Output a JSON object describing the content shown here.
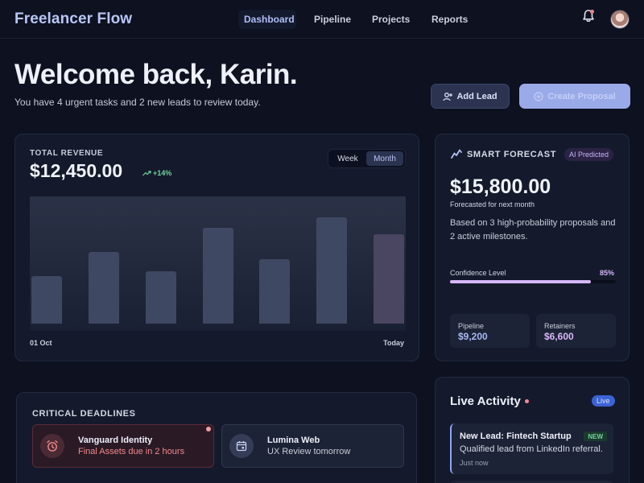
{
  "app": {
    "brand": "Freelancer Flow"
  },
  "nav": {
    "items": [
      {
        "label": "Dashboard",
        "active": true
      },
      {
        "label": "Pipeline"
      },
      {
        "label": "Projects"
      },
      {
        "label": "Reports"
      }
    ],
    "bell_icon": "bell-icon",
    "avatar_icon": "user-avatar"
  },
  "hero": {
    "title": "Welcome back, Karin.",
    "subtitle": "You have 4 urgent tasks and 2 new leads to review today.",
    "add_lead_label": "Add Lead",
    "create_proposal_label": "Create Proposal"
  },
  "revenue": {
    "label": "TOTAL REVENUE",
    "value": "$12,450.00",
    "delta": "+14%",
    "toggle": {
      "week": "Week",
      "month": "Month",
      "selected": "Month"
    },
    "x_start": "01 Oct",
    "x_end": "Today"
  },
  "chart_data": {
    "type": "bar",
    "title": "",
    "xlabel": "",
    "ylabel": "",
    "categories": [
      "",
      "",
      "",
      "",
      "",
      "",
      ""
    ],
    "values": [
      38,
      58,
      42,
      77,
      52,
      86,
      72
    ],
    "ylim": [
      0,
      100
    ],
    "grid": false
  },
  "forecast": {
    "title": "SMART FORECAST",
    "badge": "AI Predicted",
    "value": "$15,800.00",
    "subtitle": "Forecasted for next month",
    "description": "Based on 3 high-probability proposals and 2 active milestones.",
    "confidence_label": "Confidence Level",
    "confidence_value": "85%",
    "confidence_fraction": 0.85,
    "stats": [
      {
        "label": "Pipeline",
        "value": "$9,200",
        "color": "#a9b8f3"
      },
      {
        "label": "Retainers",
        "value": "$6,600",
        "color": "#d8b6f7"
      }
    ]
  },
  "deadlines": {
    "title": "CRITICAL DEADLINES",
    "items": [
      {
        "name": "Vanguard Identity",
        "detail": "Final Assets due in 2 hours",
        "icon": "alarm-clock-icon"
      },
      {
        "name": "Lumina Web",
        "detail": "UX Review tomorrow",
        "icon": "calendar-icon"
      }
    ]
  },
  "activity": {
    "title": "Live Activity",
    "badge": "Live",
    "items": [
      {
        "title": "New Lead: Fintech Startup",
        "tag": "NEW",
        "description": "Qualified lead from LinkedIn referral.",
        "time": "Just now"
      }
    ]
  },
  "colors": {
    "background": "#0d1120",
    "accent": "#9aaae9",
    "urgent": "#f08a8a",
    "positive": "#6fd39a",
    "forecast": "#d5b7f7"
  }
}
